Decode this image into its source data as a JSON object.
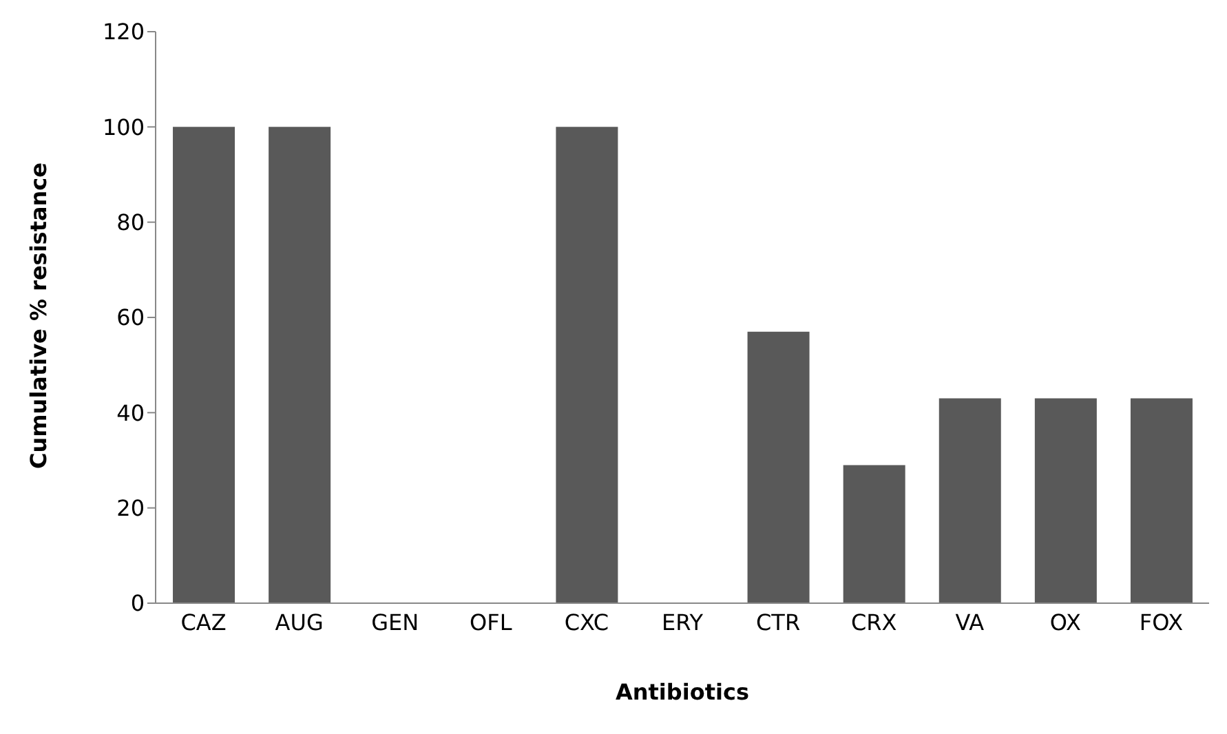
{
  "chart_data": {
    "type": "bar",
    "xlabel": "Antibiotics",
    "ylabel": "Cumulative % resistance",
    "categories": [
      "CAZ",
      "AUG",
      "GEN",
      "OFL",
      "CXC",
      "ERY",
      "CTR",
      "CRX",
      "VA",
      "OX",
      "FOX"
    ],
    "values": [
      100,
      100,
      0,
      0,
      100,
      0,
      57,
      29,
      43,
      43,
      43
    ],
    "color": "#595959",
    "ylim": [
      0,
      120
    ],
    "yticks": [
      0,
      20,
      40,
      60,
      80,
      100,
      120
    ],
    "grid": false,
    "legend": false
  }
}
